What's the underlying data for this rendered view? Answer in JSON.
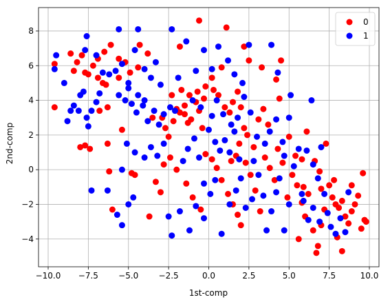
{
  "chart_data": {
    "type": "scatter",
    "xlabel": "1st-comp",
    "ylabel": "2nd-comp",
    "xlim": [
      -10.6,
      10.6
    ],
    "ylim": [
      -5.6,
      9.35
    ],
    "x_ticks": [
      -10.0,
      -7.5,
      -5.0,
      -2.5,
      0.0,
      2.5,
      5.0,
      7.5,
      10.0
    ],
    "x_tick_labels": [
      "−10.0",
      "−7.5",
      "−5.0",
      "−2.5",
      "0.0",
      "2.5",
      "5.0",
      "7.5",
      "10.0"
    ],
    "y_ticks": [
      -4,
      -2,
      0,
      2,
      4,
      6,
      8
    ],
    "y_tick_labels": [
      "−4",
      "−2",
      "0",
      "2",
      "4",
      "6",
      "8"
    ],
    "grid": true,
    "legend_position": "upper-right",
    "series": [
      {
        "name": "0",
        "color": "#ff0000",
        "points": [
          [
            -9.6,
            6.1
          ],
          [
            -9.6,
            3.6
          ],
          [
            -8.6,
            6.7
          ],
          [
            -8.4,
            5.7
          ],
          [
            -8.2,
            6.2
          ],
          [
            -7.7,
            5.6
          ],
          [
            -7.5,
            5.5
          ],
          [
            -7.9,
            6.6
          ],
          [
            -7.2,
            6.0
          ],
          [
            -6.9,
            5.3
          ],
          [
            -6.6,
            5.0
          ],
          [
            -6.4,
            4.9
          ],
          [
            -6.3,
            3.6
          ],
          [
            -6.8,
            3.4
          ],
          [
            -6.1,
            7.2
          ],
          [
            -6.5,
            6.8
          ],
          [
            -5.6,
            6.4
          ],
          [
            -5.2,
            6.2
          ],
          [
            -5.6,
            5.3
          ],
          [
            -4.9,
            5.6
          ],
          [
            -4.4,
            5.9
          ],
          [
            -4.3,
            7.2
          ],
          [
            -3.8,
            6.7
          ],
          [
            -6.9,
            6.4
          ],
          [
            -8.0,
            1.3
          ],
          [
            -7.7,
            1.4
          ],
          [
            -7.4,
            1.2
          ],
          [
            -6.3,
            1.5
          ],
          [
            -6.2,
            -0.1
          ],
          [
            -6.0,
            -2.3
          ],
          [
            -5.4,
            2.3
          ],
          [
            -4.8,
            -0.2
          ],
          [
            -4.6,
            -0.3
          ],
          [
            -3.7,
            -2.7
          ],
          [
            -3.3,
            -0.7
          ],
          [
            -3.0,
            -1.3
          ],
          [
            -3.5,
            3.0
          ],
          [
            -2.9,
            3.0
          ],
          [
            -2.7,
            2.4
          ],
          [
            -2.5,
            1.9
          ],
          [
            -2.2,
            2.8
          ],
          [
            -2.0,
            3.5
          ],
          [
            -1.8,
            3.3
          ],
          [
            -1.5,
            3.7
          ],
          [
            -1.5,
            3.2
          ],
          [
            -1.3,
            2.7
          ],
          [
            -1.1,
            2.9
          ],
          [
            -0.8,
            3.9
          ],
          [
            -0.6,
            3.4
          ],
          [
            -0.4,
            2.4
          ],
          [
            -1.2,
            4.3
          ],
          [
            -0.7,
            4.5
          ],
          [
            -0.2,
            4.8
          ],
          [
            0.3,
            4.6
          ],
          [
            0.6,
            4.3
          ],
          [
            1.0,
            3.6
          ],
          [
            1.3,
            3.3
          ],
          [
            1.5,
            3.9
          ],
          [
            1.8,
            4.5
          ],
          [
            2.0,
            3.6
          ],
          [
            2.2,
            2.4
          ],
          [
            2.4,
            2.0
          ],
          [
            1.9,
            1.5
          ],
          [
            1.7,
            0.8
          ],
          [
            1.4,
            0.5
          ],
          [
            -2.8,
            0.3
          ],
          [
            -2.4,
            0.7
          ],
          [
            -2.0,
            0.0
          ],
          [
            -1.4,
            -0.8
          ],
          [
            -1.0,
            -1.6
          ],
          [
            -0.5,
            -2.3
          ],
          [
            -0.2,
            0.9
          ],
          [
            0.2,
            0.6
          ],
          [
            0.5,
            0.1
          ],
          [
            0.8,
            -0.6
          ],
          [
            1.2,
            -1.4
          ],
          [
            1.5,
            -2.0
          ],
          [
            1.8,
            -2.6
          ],
          [
            2.0,
            -3.2
          ],
          [
            -1.8,
            7.1
          ],
          [
            -0.6,
            8.6
          ],
          [
            1.1,
            8.2
          ],
          [
            2.2,
            7.1
          ],
          [
            2.5,
            6.3
          ],
          [
            0.8,
            5.9
          ],
          [
            0.2,
            5.3
          ],
          [
            -0.3,
            4.1
          ],
          [
            -1.7,
            4.6
          ],
          [
            -2.3,
            4.3
          ],
          [
            2.3,
            0.4
          ],
          [
            2.6,
            -0.3
          ],
          [
            2.9,
            -1.2
          ],
          [
            3.2,
            -2.4
          ],
          [
            3.5,
            0.7
          ],
          [
            3.8,
            0.1
          ],
          [
            4.1,
            -0.6
          ],
          [
            4.3,
            1.2
          ],
          [
            4.6,
            0.4
          ],
          [
            4.9,
            -1.6
          ],
          [
            5.2,
            -0.3
          ],
          [
            5.5,
            -0.9
          ],
          [
            5.8,
            -1.9
          ],
          [
            6.0,
            -2.7
          ],
          [
            3.4,
            3.5
          ],
          [
            3.7,
            2.6
          ],
          [
            4.2,
            5.2
          ],
          [
            4.4,
            4.1
          ],
          [
            4.5,
            6.3
          ],
          [
            3.3,
            5.9
          ],
          [
            5.0,
            1.9
          ],
          [
            5.4,
            0.8
          ],
          [
            2.8,
            1.3
          ],
          [
            3.1,
            2.9
          ],
          [
            5.6,
            -4.0
          ],
          [
            6.2,
            -1.4
          ],
          [
            6.5,
            -3.5
          ],
          [
            6.7,
            -4.8
          ],
          [
            6.8,
            -4.4
          ],
          [
            7.0,
            -3.2
          ],
          [
            7.2,
            -2.3
          ],
          [
            7.5,
            -0.9
          ],
          [
            7.7,
            -1.6
          ],
          [
            7.9,
            -2.0
          ],
          [
            8.1,
            -2.2
          ],
          [
            8.3,
            -1.8
          ],
          [
            8.5,
            -2.7
          ],
          [
            8.7,
            -3.1
          ],
          [
            8.9,
            -2.4
          ],
          [
            9.1,
            -2.0
          ],
          [
            9.3,
            -1.5
          ],
          [
            9.5,
            -3.4
          ],
          [
            9.7,
            -2.9
          ],
          [
            9.8,
            -3.0
          ],
          [
            9.6,
            -0.2
          ],
          [
            8.9,
            -0.9
          ],
          [
            8.3,
            -4.7
          ],
          [
            7.0,
            -1.1
          ],
          [
            6.6,
            0.5
          ],
          [
            7.3,
            1.5
          ],
          [
            7.8,
            -0.6
          ],
          [
            8.0,
            -3.9
          ],
          [
            5.9,
            -1.0
          ],
          [
            6.1,
            2.2
          ],
          [
            5.8,
            0.6
          ],
          [
            6.9,
            -0.1
          ]
        ]
      },
      {
        "name": "1",
        "color": "#0000ff",
        "points": [
          [
            -9.6,
            5.8
          ],
          [
            -9.5,
            6.6
          ],
          [
            -9.0,
            5.0
          ],
          [
            -8.8,
            2.8
          ],
          [
            -8.6,
            3.4
          ],
          [
            -8.4,
            3.7
          ],
          [
            -8.1,
            3.4
          ],
          [
            -8.0,
            4.3
          ],
          [
            -7.8,
            4.5
          ],
          [
            -7.7,
            6.9
          ],
          [
            -7.6,
            3.0
          ],
          [
            -7.5,
            2.5
          ],
          [
            -7.3,
            3.4
          ],
          [
            -7.0,
            3.9
          ],
          [
            -6.8,
            4.4
          ],
          [
            -7.6,
            7.7
          ],
          [
            -7.0,
            6.6
          ],
          [
            -6.6,
            5.6
          ],
          [
            -6.2,
            5.5
          ],
          [
            -5.8,
            5.7
          ],
          [
            -5.4,
            6.1
          ],
          [
            -5.0,
            5.0
          ],
          [
            -5.6,
            8.1
          ],
          [
            -4.6,
            6.9
          ],
          [
            -4.4,
            8.1
          ],
          [
            -4.0,
            5.8
          ],
          [
            -3.6,
            5.3
          ],
          [
            -3.3,
            6.2
          ],
          [
            -3.0,
            4.9
          ],
          [
            -5.6,
            4.3
          ],
          [
            -5.2,
            4.0
          ],
          [
            -4.8,
            3.8
          ],
          [
            -4.5,
            3.3
          ],
          [
            -4.1,
            3.7
          ],
          [
            -3.8,
            2.8
          ],
          [
            -3.4,
            3.4
          ],
          [
            -3.1,
            2.6
          ],
          [
            -2.8,
            3.2
          ],
          [
            -2.4,
            3.6
          ],
          [
            -2.1,
            3.4
          ],
          [
            -5.0,
            4.7
          ],
          [
            -4.4,
            4.3
          ],
          [
            -4.0,
            4.0
          ],
          [
            -7.3,
            -1.2
          ],
          [
            -6.3,
            -1.2
          ],
          [
            -5.7,
            -2.6
          ],
          [
            -5.4,
            -3.2
          ],
          [
            -5.0,
            -2.0
          ],
          [
            -4.7,
            -1.6
          ],
          [
            -5.4,
            0.0
          ],
          [
            -5.1,
            1.5
          ],
          [
            -4.6,
            1.0
          ],
          [
            -4.0,
            0.7
          ],
          [
            -3.6,
            1.3
          ],
          [
            -3.2,
            0.8
          ],
          [
            -2.8,
            1.5
          ],
          [
            -2.5,
            -2.7
          ],
          [
            -2.3,
            -3.8
          ],
          [
            -1.8,
            -2.4
          ],
          [
            -1.2,
            -3.5
          ],
          [
            -0.8,
            -2.1
          ],
          [
            -0.3,
            -2.8
          ],
          [
            0.1,
            -1.4
          ],
          [
            0.4,
            -0.6
          ],
          [
            0.8,
            -3.7
          ],
          [
            1.3,
            -2.0
          ],
          [
            1.7,
            -1.2
          ],
          [
            2.0,
            -0.5
          ],
          [
            2.3,
            -2.2
          ],
          [
            2.7,
            -1.7
          ],
          [
            -1.6,
            0.5
          ],
          [
            -1.3,
            1.2
          ],
          [
            -0.9,
            1.8
          ],
          [
            -0.6,
            0.7
          ],
          [
            -0.3,
            -0.8
          ],
          [
            0.0,
            2.3
          ],
          [
            0.4,
            1.6
          ],
          [
            0.7,
            1.1
          ],
          [
            1.0,
            1.7
          ],
          [
            1.3,
            1.0
          ],
          [
            1.6,
            2.2
          ],
          [
            1.9,
            0.6
          ],
          [
            -2.3,
            8.1
          ],
          [
            -1.4,
            7.4
          ],
          [
            -0.3,
            6.9
          ],
          [
            0.6,
            7.1
          ],
          [
            1.2,
            6.3
          ],
          [
            1.6,
            5.5
          ],
          [
            2.1,
            5.0
          ],
          [
            0.2,
            5.8
          ],
          [
            -0.8,
            5.7
          ],
          [
            -1.9,
            5.3
          ],
          [
            2.5,
            7.2
          ],
          [
            3.9,
            7.2
          ],
          [
            4.3,
            5.6
          ],
          [
            -1.0,
            4.0
          ],
          [
            -0.5,
            3.6
          ],
          [
            0.2,
            3.1
          ],
          [
            0.5,
            4.0
          ],
          [
            0.9,
            3.2
          ],
          [
            1.4,
            2.6
          ],
          [
            1.8,
            3.0
          ],
          [
            2.2,
            4.2
          ],
          [
            2.6,
            3.3
          ],
          [
            2.8,
            0.5
          ],
          [
            3.1,
            -0.3
          ],
          [
            3.4,
            -1.5
          ],
          [
            3.6,
            -3.5
          ],
          [
            3.9,
            -2.4
          ],
          [
            4.2,
            -1.3
          ],
          [
            4.4,
            -0.5
          ],
          [
            4.7,
            -3.5
          ],
          [
            5.0,
            -2.0
          ],
          [
            5.3,
            0.2
          ],
          [
            5.6,
            1.2
          ],
          [
            5.9,
            -1.8
          ],
          [
            6.2,
            -2.9
          ],
          [
            6.5,
            -2.2
          ],
          [
            6.8,
            -0.5
          ],
          [
            3.8,
            2.2
          ],
          [
            4.2,
            2.9
          ],
          [
            4.6,
            1.6
          ],
          [
            5.0,
            3.0
          ],
          [
            5.1,
            4.3
          ],
          [
            4.7,
            0.8
          ],
          [
            3.5,
            1.5
          ],
          [
            3.0,
            1.9
          ],
          [
            6.1,
            1.1
          ],
          [
            6.4,
            4.0
          ],
          [
            6.9,
            -3.0
          ],
          [
            7.2,
            -1.4
          ],
          [
            7.4,
            -2.5
          ],
          [
            7.6,
            -3.3
          ],
          [
            7.9,
            -3.7
          ],
          [
            8.2,
            -2.8
          ],
          [
            8.5,
            -3.6
          ],
          [
            8.7,
            -1.3
          ],
          [
            6.5,
            0.3
          ],
          [
            7.0,
            1.3
          ],
          [
            5.8,
            -1.4
          ]
        ]
      }
    ]
  }
}
